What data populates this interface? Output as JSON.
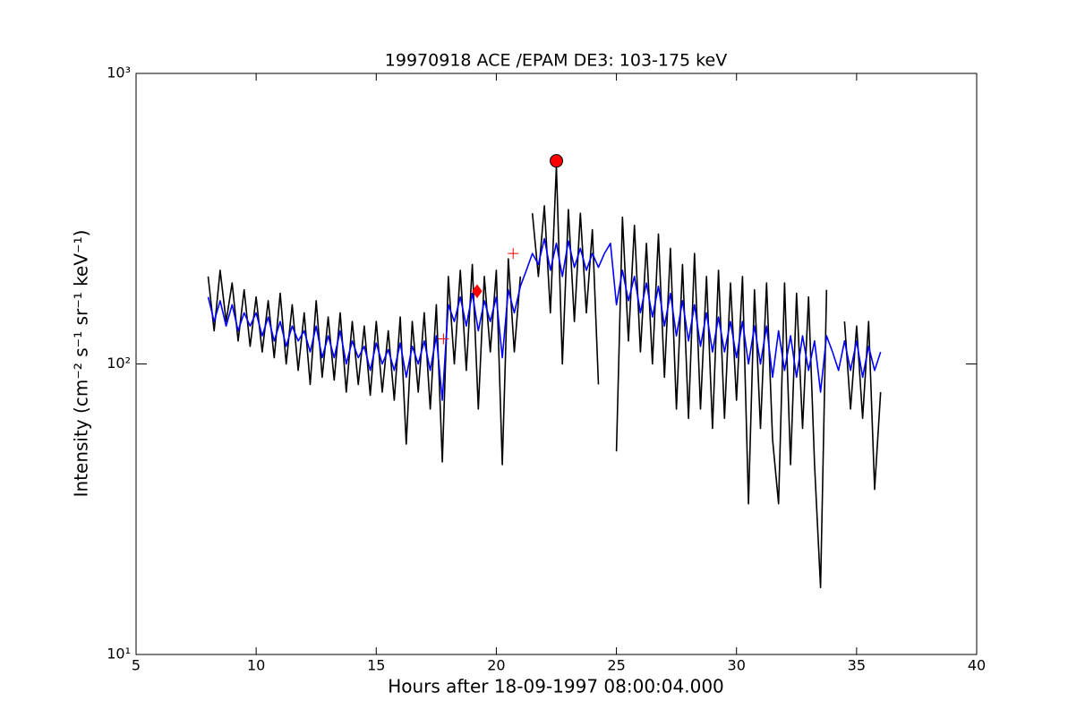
{
  "chart_data": {
    "type": "line",
    "title": "19970918 ACE /EPAM DE3: 103-175 keV",
    "xlabel": "Hours after 18-09-1997 08:00:04.000",
    "ylabel": "Intensity (cm⁻² s⁻¹ sr⁻¹ keV⁻¹)",
    "xlim": [
      5,
      40
    ],
    "xticks": [
      5,
      10,
      15,
      20,
      25,
      30,
      35,
      40
    ],
    "ylim": [
      10,
      1000
    ],
    "yscale": "log",
    "yticks": [
      {
        "value": 10,
        "label": "10¹"
      },
      {
        "value": 100,
        "label": "10²"
      },
      {
        "value": 1000,
        "label": "10³"
      }
    ],
    "x": [
      8,
      8.25,
      8.5,
      8.75,
      9,
      9.25,
      9.5,
      9.75,
      10,
      10.25,
      10.5,
      10.75,
      11,
      11.25,
      11.5,
      11.75,
      12,
      12.25,
      12.5,
      12.75,
      13,
      13.25,
      13.5,
      13.75,
      14,
      14.25,
      14.5,
      14.75,
      15,
      15.25,
      15.5,
      15.75,
      16,
      16.25,
      16.5,
      16.75,
      17,
      17.25,
      17.5,
      17.75,
      18,
      18.25,
      18.5,
      18.75,
      19,
      19.25,
      19.5,
      19.75,
      20,
      20.25,
      20.5,
      20.75,
      21,
      21.25,
      21.5,
      21.75,
      22,
      22.25,
      22.5,
      22.75,
      23,
      23.25,
      23.5,
      23.75,
      24,
      24.25,
      24.5,
      24.75,
      25,
      25.25,
      25.5,
      25.75,
      26,
      26.25,
      26.5,
      26.75,
      27,
      27.25,
      27.5,
      27.75,
      28,
      28.25,
      28.5,
      28.75,
      29,
      29.25,
      29.5,
      29.75,
      30,
      30.25,
      30.5,
      30.75,
      31,
      31.25,
      31.5,
      31.75,
      32,
      32.25,
      32.5,
      32.75,
      33,
      33.25,
      33.5,
      33.75,
      34,
      34.25,
      34.5,
      34.75,
      35,
      35.25,
      35.5,
      35.75,
      36
    ],
    "series": [
      {
        "color": "#000000",
        "values": [
          200,
          130,
          210,
          140,
          190,
          120,
          180,
          115,
          170,
          110,
          165,
          105,
          175,
          100,
          160,
          95,
          150,
          85,
          165,
          90,
          145,
          88,
          150,
          80,
          140,
          85,
          135,
          78,
          140,
          80,
          130,
          75,
          145,
          53,
          140,
          80,
          150,
          70,
          160,
          46,
          200,
          100,
          210,
          95,
          220,
          70,
          200,
          110,
          210,
          45,
          230,
          110,
          200,
          null,
          330,
          200,
          350,
          150,
          480,
          100,
          340,
          140,
          330,
          150,
          290,
          85,
          null,
          null,
          50,
          320,
          120,
          300,
          110,
          260,
          100,
          280,
          90,
          250,
          70,
          220,
          65,
          240,
          70,
          200,
          60,
          210,
          65,
          190,
          75,
          200,
          33,
          180,
          60,
          190,
          55,
          33,
          190,
          45,
          175,
          60,
          170,
          45,
          17,
          180,
          null,
          null,
          140,
          70,
          135,
          65,
          140,
          37,
          80
        ]
      },
      {
        "color": "#0000ff",
        "values": [
          170,
          140,
          165,
          135,
          160,
          130,
          150,
          135,
          150,
          125,
          145,
          120,
          140,
          115,
          135,
          120,
          130,
          110,
          135,
          105,
          125,
          105,
          130,
          100,
          120,
          105,
          115,
          95,
          118,
          100,
          112,
          95,
          118,
          90,
          115,
          100,
          120,
          95,
          125,
          75,
          160,
          140,
          170,
          135,
          175,
          130,
          165,
          140,
          170,
          105,
          180,
          150,
          185,
          210,
          240,
          220,
          270,
          210,
          260,
          200,
          265,
          215,
          250,
          210,
          240,
          215,
          240,
          260,
          160,
          210,
          165,
          200,
          150,
          190,
          145,
          185,
          135,
          175,
          125,
          165,
          120,
          160,
          115,
          150,
          110,
          145,
          110,
          140,
          105,
          140,
          100,
          135,
          100,
          135,
          90,
          130,
          95,
          125,
          90,
          125,
          95,
          120,
          80,
          125,
          110,
          95,
          120,
          95,
          120,
          90,
          115,
          95,
          110
        ]
      }
    ],
    "points": [
      {
        "x": 22.5,
        "y": 500,
        "marker": "circle",
        "color": "#ff0000"
      },
      {
        "x": 19.2,
        "y": 178,
        "marker": "diamond",
        "color": "#ff0000"
      },
      {
        "x": 17.8,
        "y": 122,
        "marker": "plus",
        "color": "#ff0000"
      },
      {
        "x": 20.7,
        "y": 240,
        "marker": "plus",
        "color": "#ff0000"
      }
    ]
  }
}
